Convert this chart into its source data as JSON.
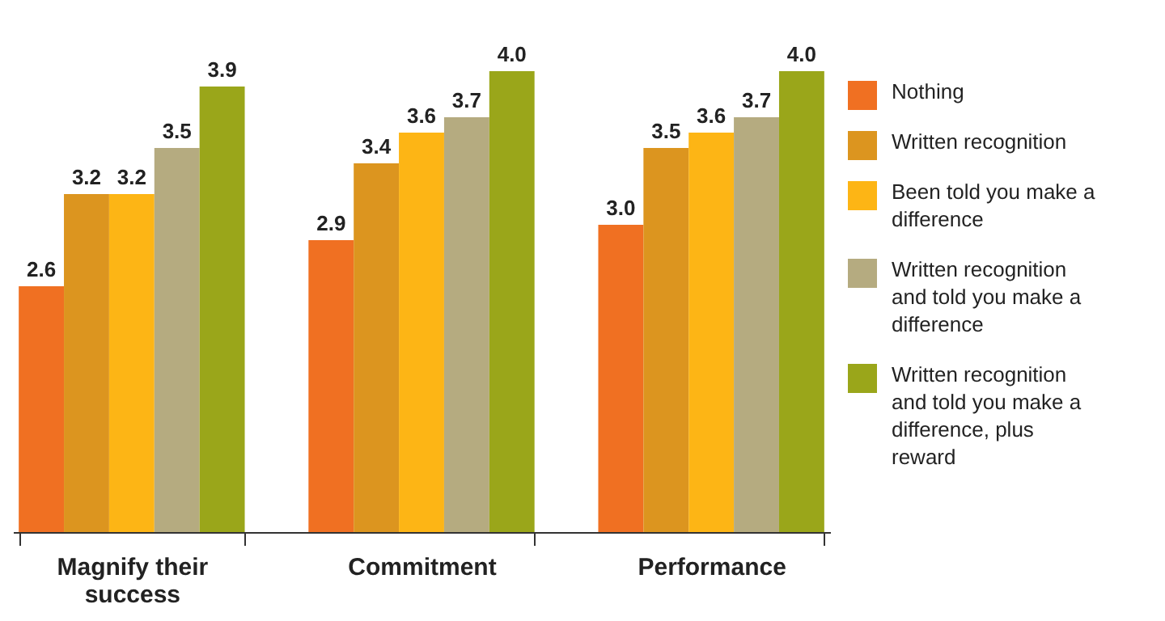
{
  "chart_data": {
    "type": "bar",
    "categories": [
      "Magnify their success",
      "Commitment",
      "Performance"
    ],
    "series": [
      {
        "name": "Nothing",
        "color": "#f07022",
        "values": [
          2.6,
          2.9,
          3.0
        ],
        "value_labels": [
          "2.6",
          "2.9",
          "3.0"
        ]
      },
      {
        "name": "Written recognition",
        "color": "#dc951f",
        "values": [
          3.2,
          3.4,
          3.5
        ],
        "value_labels": [
          "3.2",
          "3.4",
          "3.5"
        ]
      },
      {
        "name": "Been told you make a difference",
        "color": "#fdb515",
        "values": [
          3.2,
          3.6,
          3.6
        ],
        "value_labels": [
          "3.2",
          "3.6",
          "3.6"
        ]
      },
      {
        "name": "Written recognition and told you make a difference",
        "color": "#b5ab80",
        "values": [
          3.5,
          3.7,
          3.7
        ],
        "value_labels": [
          "3.5",
          "3.7",
          "3.7"
        ]
      },
      {
        "name": "Written recognition and told you make a difference, plus reward",
        "color": "#9aa61a",
        "values": [
          3.9,
          4.0,
          4.0
        ],
        "value_labels": [
          "3.9",
          "4.0",
          "4.0"
        ]
      }
    ],
    "ylim": [
      1,
      4
    ],
    "legend": "right"
  }
}
